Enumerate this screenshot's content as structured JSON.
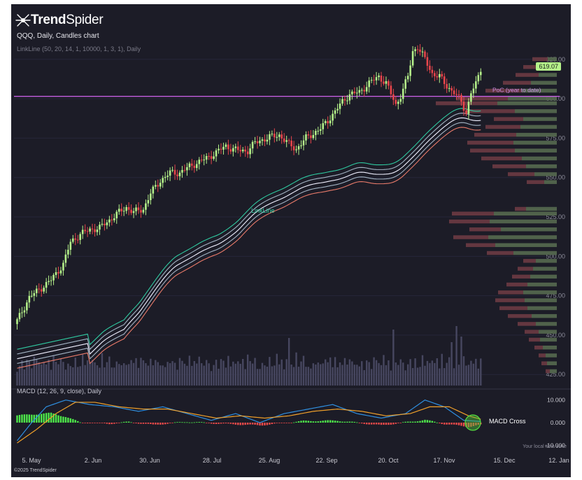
{
  "brand": {
    "name_bold": "Trend",
    "name_light": "Spider"
  },
  "chart": {
    "title": "QQQ, Daily, Candles chart",
    "indicator": "LinkLine (50, 20, 14, 1, 10000, 1, 3, 1), Daily",
    "last_price": "619.07",
    "poc_label": "PoC (year to date)",
    "channel_label": "LinkLine"
  },
  "macd": {
    "title": "MACD (12, 26, 9, close), Daily",
    "cross_label": "MACD Cross",
    "axis_labels": [
      "10.000",
      "0.000",
      "-10.000"
    ],
    "timezone_note": "Your local time zone"
  },
  "footer": {
    "copyright": "©2025 TrendSpider"
  },
  "colors": {
    "background": "#1c1c27",
    "candle_up": "#b5f28a",
    "candle_down": "#e8454b",
    "poc_line": "#c45ee0",
    "channel_outer": "#2fc9a0",
    "macd_line": "#2f8fe0",
    "signal_line": "#f0a02a"
  },
  "chart_data": {
    "type": "candlestick",
    "title": "QQQ, Daily, Candles chart",
    "y_ticks": [
      425,
      450,
      475,
      500,
      525,
      550,
      575,
      600,
      625
    ],
    "ylim": [
      418,
      640
    ],
    "x_tick_labels": [
      "5. May",
      "2. Jun",
      "30. Jun",
      "28. Jul",
      "25. Aug",
      "22. Sep",
      "20. Oct",
      "17. Nov",
      "15. Dec",
      "12. Jan"
    ],
    "last_price": 619.07,
    "poc_price": 601.5,
    "close_path": [
      [
        0,
        459
      ],
      [
        5,
        474
      ],
      [
        10,
        480
      ],
      [
        14,
        485
      ],
      [
        19,
        495
      ],
      [
        22,
        509
      ],
      [
        26,
        514
      ],
      [
        30,
        517
      ],
      [
        34,
        518
      ],
      [
        38,
        523
      ],
      [
        42,
        528
      ],
      [
        45,
        531
      ],
      [
        48,
        528
      ],
      [
        52,
        530
      ],
      [
        55,
        540
      ],
      [
        59,
        548
      ],
      [
        63,
        553
      ],
      [
        67,
        553
      ],
      [
        71,
        557
      ],
      [
        75,
        560
      ],
      [
        79,
        563
      ],
      [
        82,
        566
      ],
      [
        86,
        570
      ],
      [
        89,
        568
      ],
      [
        92,
        567
      ],
      [
        95,
        567
      ],
      [
        98,
        572
      ],
      [
        101,
        574
      ],
      [
        105,
        576
      ],
      [
        108,
        577
      ],
      [
        112,
        571
      ],
      [
        115,
        568
      ],
      [
        119,
        575
      ],
      [
        122,
        578
      ],
      [
        125,
        581
      ],
      [
        128,
        586
      ],
      [
        131,
        592
      ],
      [
        134,
        598
      ],
      [
        137,
        603
      ],
      [
        141,
        604
      ],
      [
        145,
        610
      ],
      [
        149,
        614
      ],
      [
        152,
        610
      ],
      [
        156,
        596
      ],
      [
        158,
        602
      ],
      [
        161,
        614
      ],
      [
        163,
        630
      ],
      [
        165,
        633
      ],
      [
        168,
        625
      ],
      [
        171,
        616
      ],
      [
        174,
        614
      ],
      [
        177,
        608
      ],
      [
        180,
        604
      ],
      [
        183,
        598
      ],
      [
        185,
        591
      ],
      [
        187,
        604
      ],
      [
        189,
        609
      ],
      [
        191,
        619
      ]
    ],
    "volume_pattern": [
      34,
      42,
      48,
      38,
      55,
      44,
      39,
      61,
      47,
      52,
      40,
      58,
      45,
      50,
      37,
      66,
      43,
      49,
      56,
      41
    ],
    "volume_spikes": [
      [
        112,
        68
      ],
      [
        155,
        80
      ],
      [
        179,
        62
      ],
      [
        181,
        85
      ],
      [
        183,
        70
      ]
    ],
    "volume_profile": [
      [
        625,
        22,
        13
      ],
      [
        620,
        28,
        20
      ],
      [
        615,
        33,
        26
      ],
      [
        610,
        40,
        37
      ],
      [
        605,
        52,
        50
      ],
      [
        600,
        74,
        70
      ],
      [
        597,
        88,
        85
      ],
      [
        592,
        70,
        60
      ],
      [
        587,
        42,
        48
      ],
      [
        582,
        50,
        52
      ],
      [
        577,
        60,
        58
      ],
      [
        572,
        66,
        62
      ],
      [
        567,
        64,
        60
      ],
      [
        562,
        58,
        50
      ],
      [
        557,
        48,
        44
      ],
      [
        552,
        38,
        32
      ],
      [
        547,
        25,
        18
      ],
      [
        530,
        16,
        44
      ],
      [
        527,
        60,
        90
      ],
      [
        522,
        58,
        96
      ],
      [
        517,
        45,
        80
      ],
      [
        512,
        50,
        98
      ],
      [
        507,
        42,
        88
      ],
      [
        502,
        38,
        62
      ],
      [
        497,
        18,
        30
      ],
      [
        492,
        22,
        34
      ],
      [
        487,
        26,
        38
      ],
      [
        482,
        30,
        42
      ],
      [
        477,
        36,
        48
      ],
      [
        472,
        42,
        46
      ],
      [
        467,
        40,
        42
      ],
      [
        462,
        34,
        36
      ],
      [
        457,
        26,
        30
      ],
      [
        452,
        20,
        26
      ],
      [
        447,
        16,
        24
      ],
      [
        442,
        12,
        20
      ],
      [
        437,
        10,
        16
      ],
      [
        432,
        8,
        14
      ],
      [
        427,
        6,
        10
      ]
    ],
    "macd_ylim": [
      -13,
      13
    ],
    "macd_histogram_profile": [
      [
        0,
        3.2
      ],
      [
        14,
        4.2
      ],
      [
        20,
        2.6
      ],
      [
        26,
        0.1
      ],
      [
        38,
        -0.5
      ],
      [
        46,
        0.3
      ],
      [
        56,
        -1.0
      ],
      [
        70,
        0.4
      ],
      [
        82,
        -0.4
      ],
      [
        100,
        -1.2
      ],
      [
        118,
        0.7
      ],
      [
        132,
        0.9
      ],
      [
        150,
        -1.2
      ],
      [
        168,
        1.2
      ],
      [
        176,
        -0.6
      ],
      [
        186,
        -1.8
      ],
      [
        191,
        -1.0
      ]
    ],
    "macd_line_profile": [
      [
        0,
        -8
      ],
      [
        6,
        0
      ],
      [
        12,
        7
      ],
      [
        20,
        10
      ],
      [
        30,
        8
      ],
      [
        40,
        7
      ],
      [
        50,
        5
      ],
      [
        60,
        7
      ],
      [
        70,
        4
      ],
      [
        80,
        1
      ],
      [
        90,
        4
      ],
      [
        100,
        0
      ],
      [
        110,
        4
      ],
      [
        120,
        6
      ],
      [
        130,
        8
      ],
      [
        140,
        4
      ],
      [
        150,
        2
      ],
      [
        160,
        4
      ],
      [
        168,
        10
      ],
      [
        176,
        7
      ],
      [
        184,
        1
      ],
      [
        191,
        0.5
      ]
    ],
    "signal_line_profile": [
      [
        0,
        -9
      ],
      [
        8,
        -3
      ],
      [
        16,
        4
      ],
      [
        24,
        9
      ],
      [
        32,
        9
      ],
      [
        42,
        7
      ],
      [
        52,
        6
      ],
      [
        62,
        6
      ],
      [
        72,
        4
      ],
      [
        82,
        2
      ],
      [
        92,
        3
      ],
      [
        102,
        2
      ],
      [
        112,
        3
      ],
      [
        122,
        5
      ],
      [
        132,
        6
      ],
      [
        142,
        5
      ],
      [
        152,
        3
      ],
      [
        162,
        4
      ],
      [
        170,
        7
      ],
      [
        178,
        7
      ],
      [
        186,
        3
      ],
      [
        191,
        1.5
      ]
    ]
  }
}
